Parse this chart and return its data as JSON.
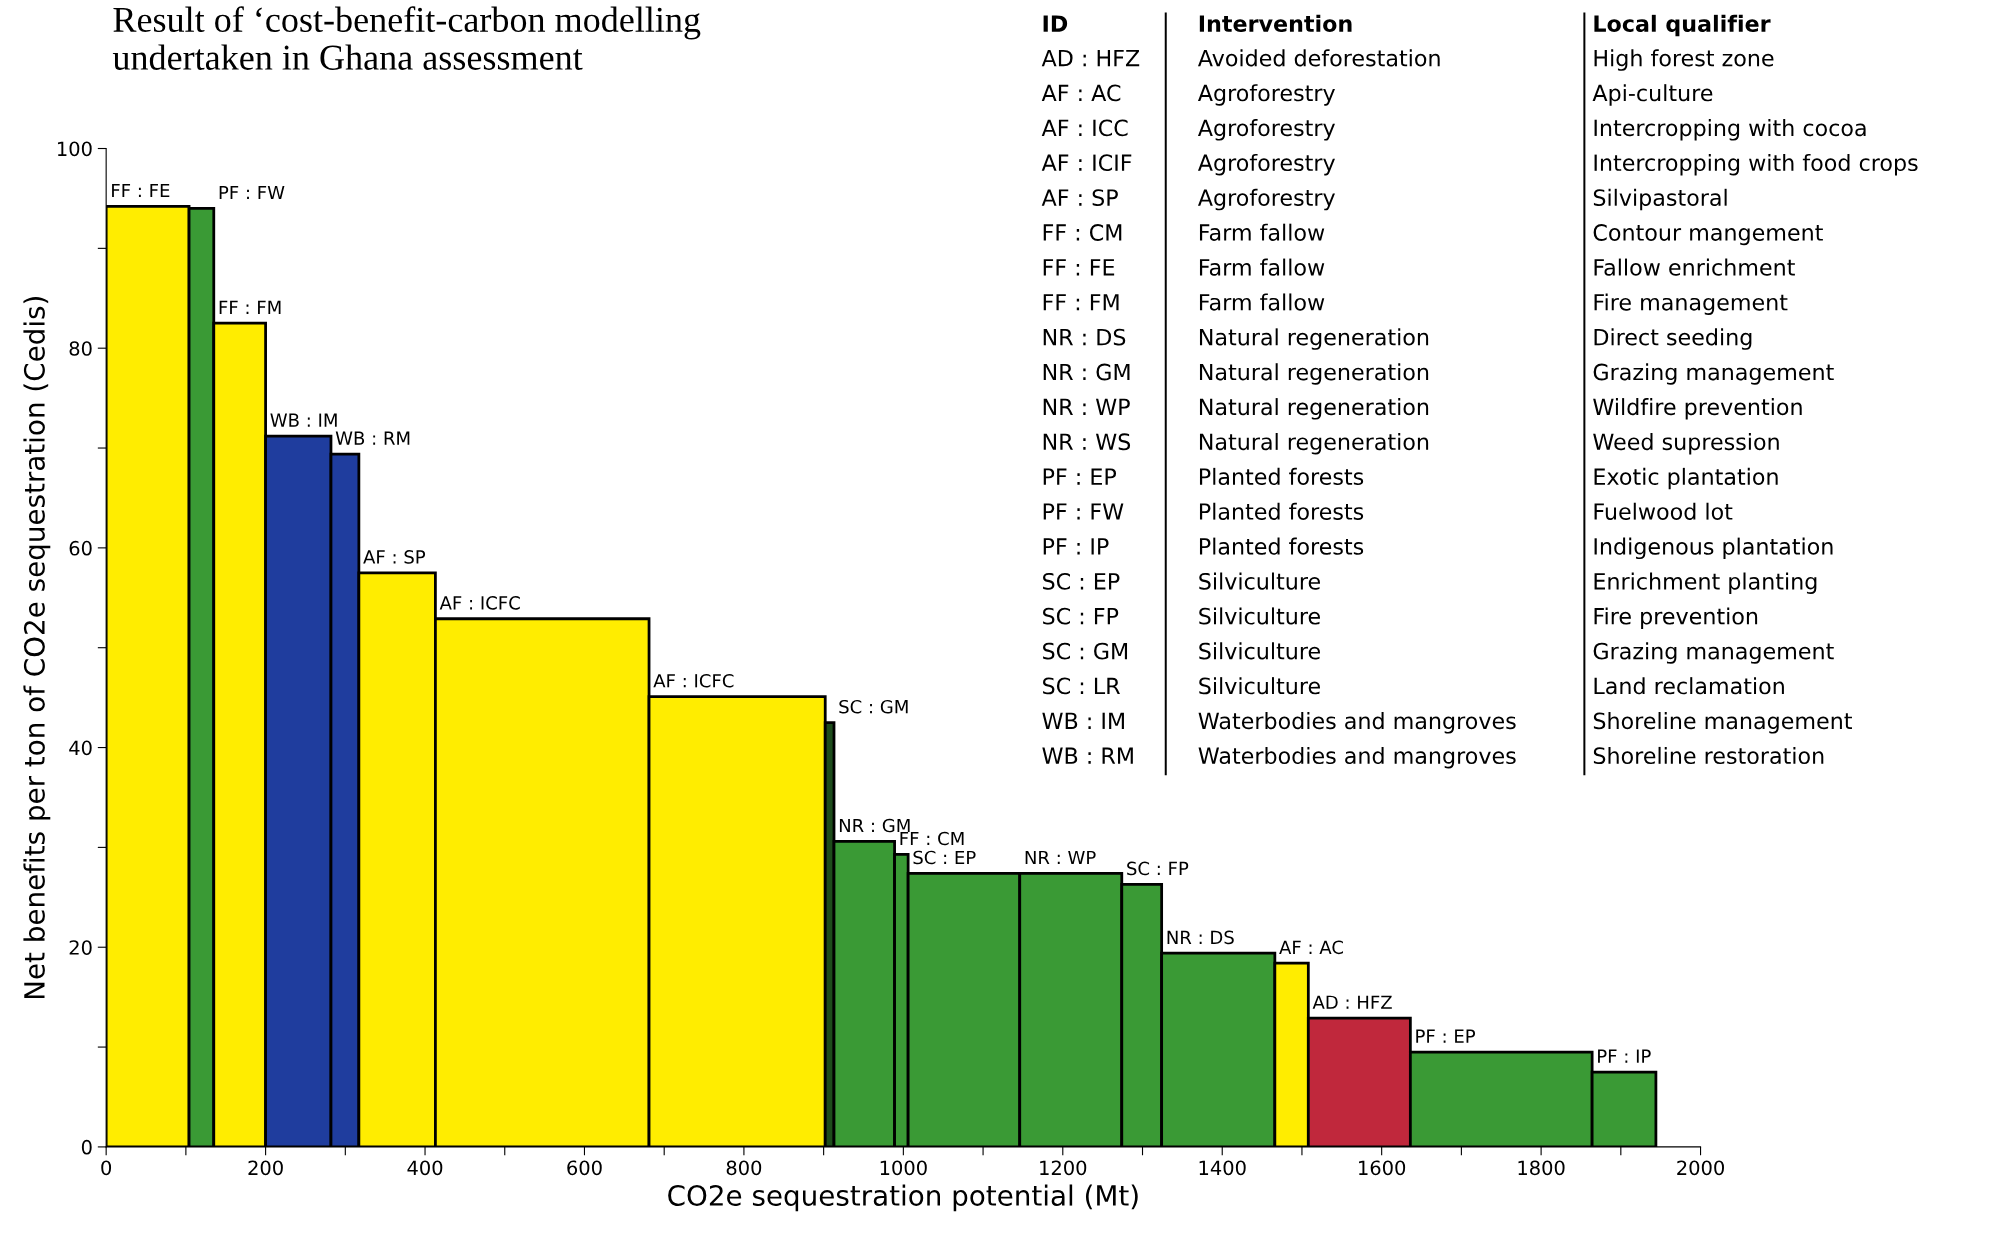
{
  "chart_data": {
    "type": "histogram",
    "title": "Result of ‘cost-benefit-carbon modelling undertaken in Ghana assessment",
    "xlabel": "CO2e sequestration potential (Mt)",
    "ylabel": "Net benefits per ton of CO2e sequestration (Cedis)",
    "bins": [
      0,
      104,
      135,
      200,
      282,
      317,
      413,
      681,
      902,
      913,
      989,
      1006,
      1146,
      1274,
      1324,
      1466,
      1508,
      1636,
      1864,
      1944
    ],
    "values": [
      94.2,
      94,
      82.5,
      71.2,
      69.4,
      57.5,
      52.9,
      45.1,
      42.5,
      30.6,
      29.3,
      27.4,
      27.4,
      26.3,
      19.4,
      18.4,
      12.9,
      9.5,
      7.5
    ],
    "colors": [
      "#ffed00",
      "#3a9a35",
      "#ffed00",
      "#1f3d9e",
      "#1f3d9e",
      "#ffed00",
      "#ffed00",
      "#ffed00",
      "#1e4d1c",
      "#3a9a35",
      "#3a9a35",
      "#3a9a35",
      "#3a9a35",
      "#3a9a35",
      "#3a9a35",
      "#ffed00",
      "#c0283c",
      "#3a9a35",
      "#3a9a35"
    ],
    "xlim": [
      0,
      2000
    ],
    "ylim": [
      0,
      100
    ],
    "xticks": [
      0,
      {
        "value": 100,
        "label": null
      },
      200,
      {
        "value": 300,
        "label": null
      },
      400,
      {
        "value": 500,
        "label": null
      },
      600,
      {
        "value": 700,
        "label": null
      },
      800,
      {
        "value": 900,
        "label": null
      },
      1000,
      {
        "value": 1100,
        "label": null
      },
      1200,
      {
        "value": 1300,
        "label": null
      },
      1400,
      {
        "value": 1500,
        "label": null
      },
      1600,
      {
        "value": 1700,
        "label": null
      },
      1800,
      {
        "value": 1900,
        "label": null
      },
      2000
    ],
    "yticks": [
      0,
      {
        "value": 10,
        "label": null
      },
      20,
      {
        "value": 30,
        "label": null
      },
      40,
      {
        "value": 50,
        "label": null
      },
      60,
      {
        "value": 70,
        "label": null
      },
      80,
      {
        "value": 90,
        "label": null
      },
      100
    ],
    "grid": false,
    "legend": false,
    "annotations": [
      {
        "text": "FF : FE",
        "x": 0,
        "y": 94.2
      },
      {
        "text": "PF : FW",
        "x": 135,
        "y": 94
      },
      {
        "text": "FF : FM",
        "x": 135,
        "y": 82.5
      },
      {
        "text": "WB : IM",
        "x": 200,
        "y": 71.2
      },
      {
        "text": "WB : RM",
        "x": 282,
        "y": 69.4
      },
      {
        "text": "AF : SP",
        "x": 317,
        "y": 57.5
      },
      {
        "text": "AF : ICFC",
        "x": 413,
        "y": 52.9
      },
      {
        "text": "AF : ICFC",
        "x": 681,
        "y": 45.1
      },
      {
        "text": "SC : GM",
        "x": 913,
        "y": 42.5
      },
      {
        "text": "NR : GM",
        "x": 913,
        "y": 30.6
      },
      {
        "text": "FF : CM",
        "x": 989,
        "y": 29.3
      },
      {
        "text": "SC : EP",
        "x": 1006,
        "y": 27.4
      },
      {
        "text": "NR : WP",
        "x": 1146,
        "y": 27.4
      },
      {
        "text": "SC : FP",
        "x": 1274,
        "y": 26.3
      },
      {
        "text": "NR : DS",
        "x": 1324,
        "y": 19.4
      },
      {
        "text": "AF : AC",
        "x": 1466,
        "y": 18.4
      },
      {
        "text": "AD : HFZ",
        "x": 1508,
        "y": 12.9
      },
      {
        "text": "PF : EP",
        "x": 1636,
        "y": 9.5
      },
      {
        "text": "PF : IP",
        "x": 1864,
        "y": 7.5
      },
      "ID",
      "Intervention",
      "Local qualifier",
      "AD : HFZ",
      "Avoided deforestation",
      "High forest zone",
      "AF : AC",
      "Agroforestry",
      "Api-culture",
      "AF : ICC",
      "Agroforestry",
      "Intercropping with cocoa",
      "AF : ICIF",
      "Agroforestry",
      "Intercropping with food crops",
      "AF : SP",
      "Agroforestry",
      "Silvipastoral",
      "FF : CM",
      "Farm fallow",
      "Contour mangement",
      "FF : FE",
      "Farm fallow",
      "Fallow enrichment",
      "FF : FM",
      "Farm fallow",
      "Fire management",
      "NR : DS",
      "Natural regeneration",
      "Direct seeding",
      "NR : GM",
      "Natural regeneration",
      "Grazing management",
      "NR : WP",
      "Natural regeneration",
      "Wildfire prevention",
      "NR : WS",
      "Natural regeneration",
      "Weed supression",
      "PF : EP",
      "Planted forests",
      "Exotic plantation",
      "PF : FW",
      "Planted forests",
      "Fuelwood lot",
      "PF : IP",
      "Planted forests",
      "Indigenous plantation",
      "SC : EP",
      "Silviculture",
      "Enrichment planting",
      "SC : FP",
      "Silviculture",
      "Fire prevention",
      "SC : GM",
      "Silviculture",
      "Grazing management",
      "SC : LR",
      "Silviculture",
      "Land reclamation",
      "WB : IM",
      "Waterbodies and mangroves",
      "Shoreline management",
      "WB : RM",
      "Waterbodies and mangroves",
      "Shoreline restoration"
    ]
  }
}
